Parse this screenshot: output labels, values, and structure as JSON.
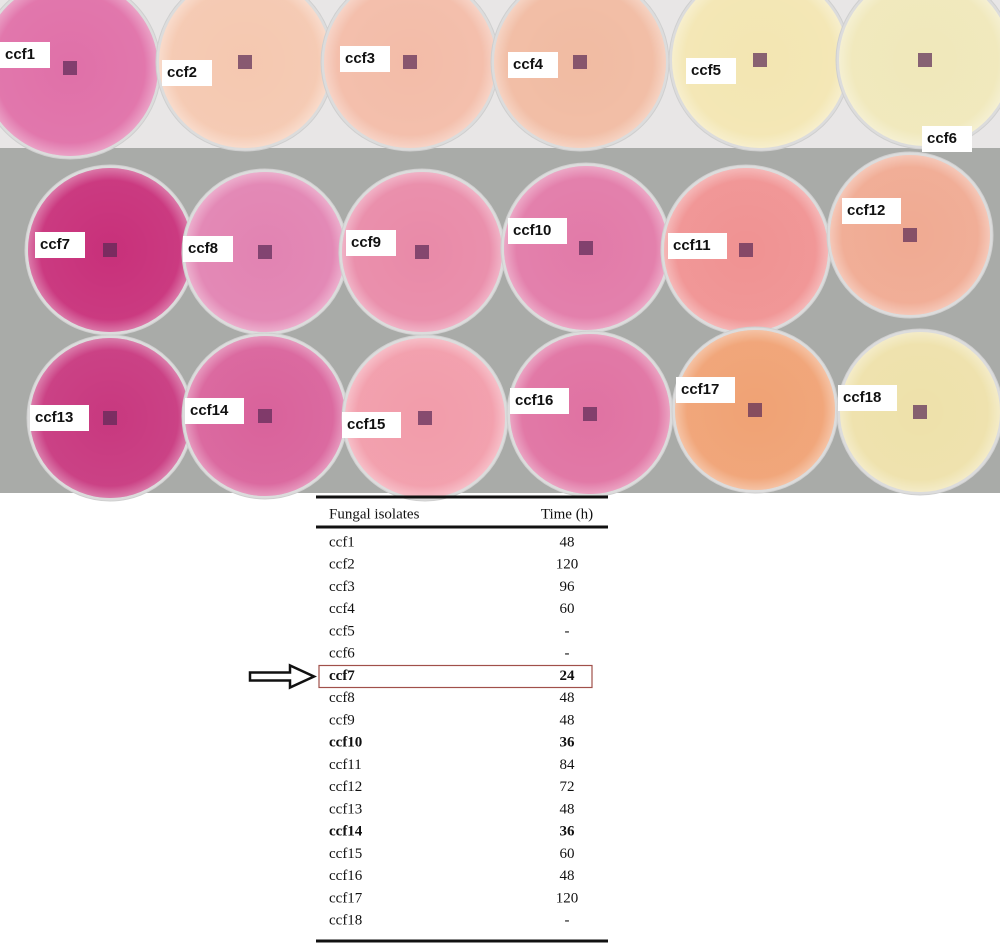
{
  "plates": [
    {
      "label": "ccf1",
      "color": "#e070a8"
    },
    {
      "label": "ccf2",
      "color": "#f5c8b0"
    },
    {
      "label": "ccf3",
      "color": "#f3bca8"
    },
    {
      "label": "ccf4",
      "color": "#f1bba2"
    },
    {
      "label": "ccf5",
      "color": "#f3e6b2"
    },
    {
      "label": "ccf6",
      "color": "#f0e8ba"
    },
    {
      "label": "ccf7",
      "color": "#c8307a"
    },
    {
      "label": "ccf8",
      "color": "#e283b2"
    },
    {
      "label": "ccf9",
      "color": "#e98aa8"
    },
    {
      "label": "ccf10",
      "color": "#e27aa8"
    },
    {
      "label": "ccf11",
      "color": "#f09292"
    },
    {
      "label": "ccf12",
      "color": "#f0aa92"
    },
    {
      "label": "ccf13",
      "color": "#c8387f"
    },
    {
      "label": "ccf14",
      "color": "#d9629b"
    },
    {
      "label": "ccf15",
      "color": "#f29caa"
    },
    {
      "label": "ccf16",
      "color": "#e072a2"
    },
    {
      "label": "ccf17",
      "color": "#f0a274"
    },
    {
      "label": "ccf18",
      "color": "#eee1aa"
    }
  ],
  "table": {
    "header": [
      "Fungal isolates",
      "Time (h)"
    ],
    "rows": [
      {
        "isolate": "ccf1",
        "time": 48
      },
      {
        "isolate": "ccf2",
        "time": 120
      },
      {
        "isolate": "ccf3",
        "time": 96
      },
      {
        "isolate": "ccf4",
        "time": 60
      },
      {
        "isolate": "ccf5",
        "time": "-"
      },
      {
        "isolate": "ccf6",
        "time": "-"
      },
      {
        "isolate": "ccf7",
        "time": 24,
        "bold": true,
        "highlighted": true
      },
      {
        "isolate": "ccf8",
        "time": 48
      },
      {
        "isolate": "ccf9",
        "time": 48
      },
      {
        "isolate": "ccf10",
        "time": 36,
        "bold": true
      },
      {
        "isolate": "ccf11",
        "time": 84
      },
      {
        "isolate": "ccf12",
        "time": 72
      },
      {
        "isolate": "ccf13",
        "time": 48
      },
      {
        "isolate": "ccf14",
        "time": 36,
        "bold": true
      },
      {
        "isolate": "ccf15",
        "time": 60
      },
      {
        "isolate": "ccf16",
        "time": 48
      },
      {
        "isolate": "ccf17",
        "time": 120
      },
      {
        "isolate": "ccf18",
        "time": "-"
      }
    ]
  }
}
